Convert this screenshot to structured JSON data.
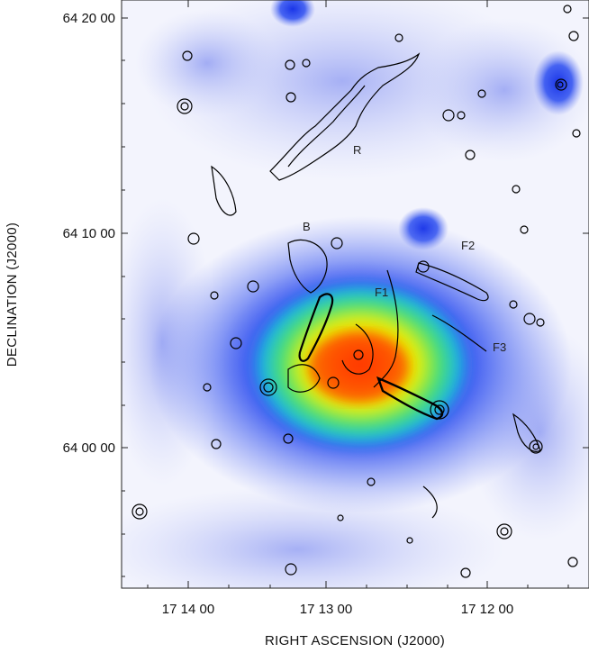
{
  "figure": {
    "ylabel": "DECLINATION  (J2000)",
    "xlabel": "RIGHT ASCENSION  (J2000)",
    "y_ticks": [
      "64 20 00",
      "64 10 00",
      "64 00 00"
    ],
    "x_ticks": [
      "17 14 00",
      "17 13 00",
      "17 12 00"
    ],
    "features": {
      "r": "R",
      "b": "B",
      "f1": "F1",
      "f2": "F2",
      "f3": "F3"
    }
  }
}
